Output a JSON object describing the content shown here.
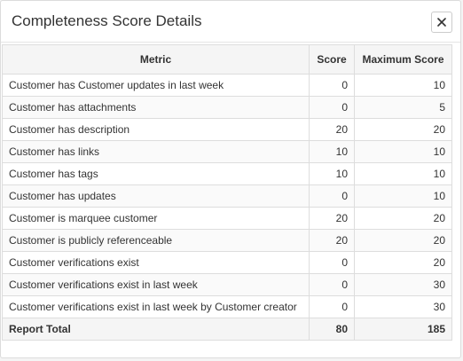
{
  "dialog": {
    "title": "Completeness Score Details",
    "close_icon": "close-icon"
  },
  "table": {
    "headers": {
      "metric": "Metric",
      "score": "Score",
      "max": "Maximum Score"
    },
    "rows": [
      {
        "metric": "Customer has Customer updates in last week",
        "score": "0",
        "max": "10"
      },
      {
        "metric": "Customer has attachments",
        "score": "0",
        "max": "5"
      },
      {
        "metric": "Customer has description",
        "score": "20",
        "max": "20"
      },
      {
        "metric": "Customer has links",
        "score": "10",
        "max": "10"
      },
      {
        "metric": "Customer has tags",
        "score": "10",
        "max": "10"
      },
      {
        "metric": "Customer has updates",
        "score": "0",
        "max": "10"
      },
      {
        "metric": "Customer is marquee customer",
        "score": "20",
        "max": "20"
      },
      {
        "metric": "Customer is publicly referenceable",
        "score": "20",
        "max": "20"
      },
      {
        "metric": "Customer verifications exist",
        "score": "0",
        "max": "20"
      },
      {
        "metric": "Customer verifications exist in last week",
        "score": "0",
        "max": "30"
      },
      {
        "metric": "Customer verifications exist in last week by Customer creator",
        "score": "0",
        "max": "30"
      }
    ],
    "total": {
      "label": "Report Total",
      "score": "80",
      "max": "185"
    }
  }
}
